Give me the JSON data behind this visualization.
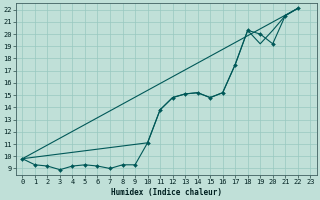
{
  "xlabel": "Humidex (Indice chaleur)",
  "bg_color": "#c0e0d8",
  "grid_color": "#98c8c0",
  "line_color": "#005858",
  "xlim": [
    -0.5,
    23.5
  ],
  "ylim": [
    8.5,
    22.5
  ],
  "xticks": [
    0,
    1,
    2,
    3,
    4,
    5,
    6,
    7,
    8,
    9,
    10,
    11,
    12,
    13,
    14,
    15,
    16,
    17,
    18,
    19,
    20,
    21,
    22,
    23
  ],
  "yticks": [
    9,
    10,
    11,
    12,
    13,
    14,
    15,
    16,
    17,
    18,
    19,
    20,
    21,
    22
  ],
  "line1_x": [
    0,
    1,
    2,
    3,
    4,
    5,
    6,
    7,
    8,
    9,
    10,
    11,
    12,
    13,
    14,
    15,
    16,
    17,
    18,
    19,
    20,
    21,
    22
  ],
  "line1_y": [
    9.8,
    9.3,
    9.2,
    8.9,
    9.2,
    9.3,
    9.2,
    9.0,
    9.3,
    9.3,
    11.1,
    13.8,
    14.8,
    15.1,
    15.2,
    14.8,
    15.2,
    17.5,
    20.3,
    20.0,
    19.2,
    21.5,
    22.1
  ],
  "line2_x": [
    0,
    10,
    11,
    12,
    13,
    14,
    15,
    16,
    17,
    18,
    19,
    20,
    21,
    22
  ],
  "line2_y": [
    9.8,
    11.1,
    13.8,
    14.8,
    15.1,
    15.2,
    14.8,
    15.2,
    17.5,
    20.3,
    19.2,
    20.3,
    21.5,
    22.1
  ],
  "line3_x": [
    0,
    22
  ],
  "line3_y": [
    9.8,
    22.1
  ],
  "xlabel_fontsize": 5.5,
  "tick_fontsize": 5
}
